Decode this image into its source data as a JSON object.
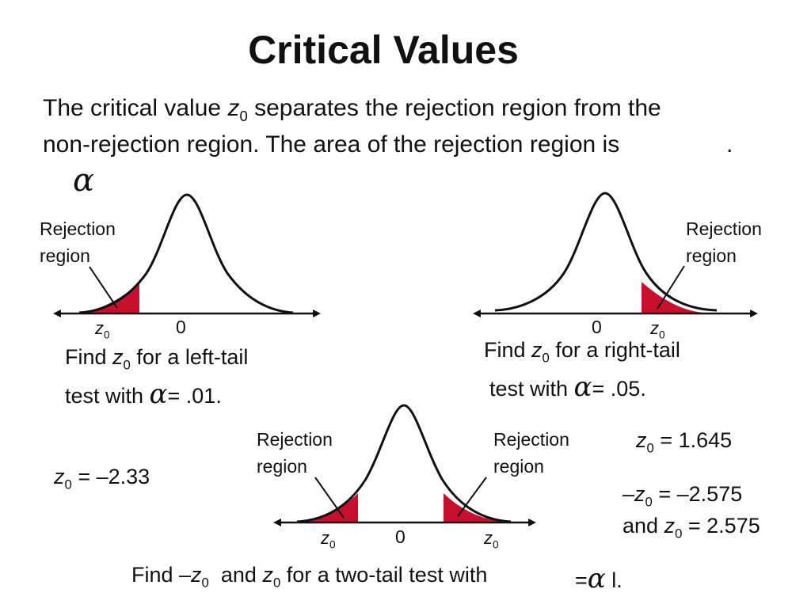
{
  "title": "Critical Values",
  "intro": {
    "line1_pre": "The critical value ",
    "z": "z",
    "sub": "0",
    "line1_post": " separates the rejection region from the",
    "line2": "non-rejection region. The area of the rejection region is",
    "line2_end": ".",
    "alpha_symbol": "α"
  },
  "rejection_label": [
    "Rejection",
    "region"
  ],
  "z0_label": {
    "z": "z",
    "sub": "0"
  },
  "zero_label": "0",
  "left_tail": {
    "find_line1_pre": "Find ",
    "find_line1_post": " for a left-tail",
    "find_line2_pre": "test with ",
    "find_line2_post": "= .01.",
    "answer": "= –2.33"
  },
  "right_tail": {
    "find_line1_pre": "Find ",
    "find_line1_post": " for a right-tail",
    "find_line2_pre": "test with ",
    "find_line2_post": "= .05.",
    "answer": "= 1.645"
  },
  "two_tail": {
    "find_pre": "Find –",
    "find_mid": "and ",
    "find_post": " for a two-tail test with",
    "find_eq": "=",
    "find_end": "l.",
    "answer_line1_pre": "–",
    "answer_line1_post": "= –2.575",
    "answer_line2_pre": "and ",
    "answer_line2_post": "= 2.575"
  },
  "colors": {
    "rejection_fill": "#c8102e",
    "curve": "#111111"
  }
}
